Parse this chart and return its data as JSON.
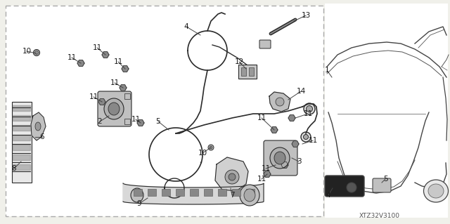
{
  "bg_color": "#f0f0ea",
  "white": "#ffffff",
  "dark": "#333333",
  "mid": "#666666",
  "light": "#aaaaaa",
  "code_text": "XTZ32V3100",
  "fig_w": 6.4,
  "fig_h": 3.19,
  "dpi": 100
}
